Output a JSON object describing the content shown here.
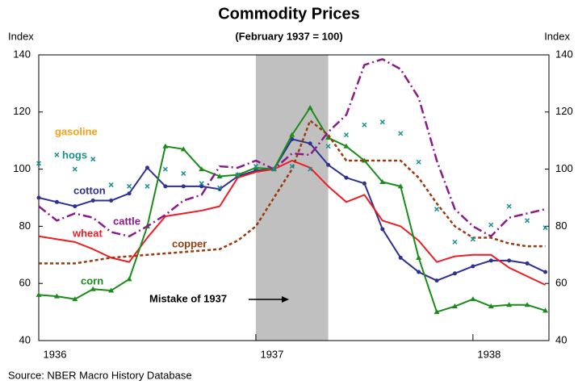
{
  "chart_data": {
    "type": "line",
    "title": "Commodity Prices",
    "subtitle": "(February 1937 = 100)",
    "ylabel": "Index",
    "y2label": "Index",
    "source": "Source: NBER Macro History Database",
    "x": [
      0,
      1,
      2,
      3,
      4,
      5,
      6,
      7,
      8,
      9,
      10,
      11,
      12,
      13,
      14,
      15,
      16,
      17,
      18,
      19,
      20,
      21,
      22,
      23,
      24,
      25,
      26,
      27,
      28
    ],
    "xlim": [
      0,
      28.2
    ],
    "xticks": [
      {
        "value": 0,
        "label": "1936"
      },
      {
        "value": 12,
        "label": "1937"
      },
      {
        "value": 24,
        "label": "1938"
      }
    ],
    "ylim": [
      40,
      140
    ],
    "yticks": [
      40,
      60,
      80,
      100,
      120,
      140
    ],
    "y2lim": [
      40,
      140
    ],
    "y2ticks": [
      40,
      60,
      80,
      100,
      120,
      140
    ],
    "shaded_range": [
      12,
      16
    ],
    "annotations": [
      {
        "text": "Mistake of 1937"
      },
      {
        "text": "gasoline",
        "color": "#f7a11a"
      }
    ],
    "series": [
      {
        "name": "cotton",
        "color": "#2e3192",
        "marker": "dot",
        "values": [
          90,
          88.5,
          87,
          89,
          89,
          91.5,
          100.5,
          94,
          94,
          94,
          93,
          97.5,
          99.5,
          100,
          110.5,
          109,
          101.5,
          97,
          95,
          79,
          69,
          64,
          61,
          63.5,
          66,
          68,
          68,
          67,
          64
        ]
      },
      {
        "name": "wheat",
        "color": "#ee1c25",
        "marker": "none",
        "values": [
          76.5,
          75.5,
          74.5,
          72,
          69,
          67.5,
          76,
          83.5,
          84.5,
          85.5,
          87,
          97,
          99,
          100,
          103,
          100.5,
          94,
          88.5,
          91,
          82,
          80,
          75,
          67.5,
          69.5,
          70,
          70,
          65.5,
          62.5,
          59.5
        ]
      },
      {
        "name": "corn",
        "color": "#1a8c1a",
        "marker": "triangle",
        "values": [
          56,
          55.5,
          54.5,
          58,
          57.5,
          61.5,
          80,
          108,
          107,
          100,
          97.5,
          98,
          100.5,
          100,
          112,
          121.5,
          111,
          108,
          103,
          95.5,
          94,
          69,
          50,
          52,
          54.5,
          52,
          52.5,
          52.5,
          50.5
        ]
      },
      {
        "name": "copper",
        "color": "#9b3a0f",
        "marker": "none",
        "dash": "4,3",
        "values": [
          67,
          67,
          67,
          68,
          69,
          69.5,
          70,
          70.5,
          71,
          71.5,
          72,
          75,
          80,
          90,
          100,
          117,
          112,
          103,
          103,
          103,
          103,
          97,
          88,
          80,
          76,
          76,
          74,
          73,
          73
        ]
      },
      {
        "name": "cattle",
        "color": "#8b1a8b",
        "marker": "none",
        "dash": "11,4,2,4",
        "values": [
          87,
          82,
          84.5,
          83,
          78,
          76.5,
          80,
          84,
          89,
          91,
          101,
          100.5,
          103,
          100,
          105.5,
          105,
          113,
          119,
          136.5,
          138.5,
          135,
          125,
          103,
          86,
          80,
          76.5,
          83,
          84.5,
          86
        ]
      },
      {
        "name": "hogs",
        "color": "#1a9090",
        "marker": "cross",
        "noline": true,
        "values": [
          102,
          105,
          100,
          103.5,
          94.5,
          94,
          94,
          100,
          98.5,
          95,
          93.5,
          98,
          101,
          100,
          101,
          100,
          108,
          112,
          115.5,
          116.5,
          112.5,
          102.5,
          86,
          74.5,
          75.5,
          80.5,
          87,
          82,
          79.5
        ]
      }
    ]
  }
}
